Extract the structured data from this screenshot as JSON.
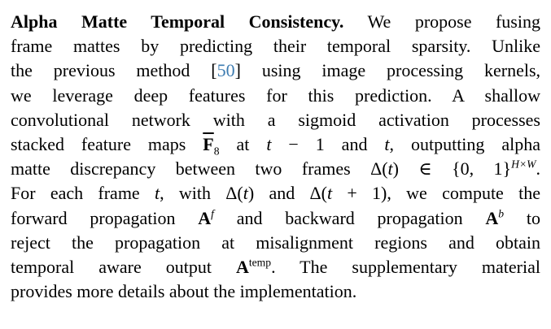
{
  "page": {
    "background": "#ffffff",
    "text_color": "#000000",
    "citation_color": "#3e7cb1"
  },
  "paragraph": {
    "run_in_heading": "Alpha Matte Temporal Consistency.",
    "citation_ref": "50",
    "lines": [
      [
        {
          "t": "Alpha Matte Temporal Consistency.",
          "b": true
        },
        {
          "t": " We propose fusing"
        }
      ],
      [
        {
          "t": "frame mattes by predicting their temporal sparsity. Unlike"
        }
      ],
      [
        {
          "t": "the previous method ["
        },
        {
          "t": "50",
          "c": true
        },
        {
          "t": "] using image processing kernels,"
        }
      ],
      [
        {
          "t": "we leverage deep features for this prediction. A shallow"
        }
      ],
      [
        {
          "t": "convolutional network with a sigmoid activation processes"
        }
      ],
      [
        {
          "t": "stacked feature maps "
        },
        {
          "t": "F",
          "b": true,
          "bar": true
        },
        {
          "t": "8",
          "sub": true
        },
        {
          "t": " at "
        },
        {
          "t": "t",
          "i": true
        },
        {
          "t": " − 1 and "
        },
        {
          "t": "t",
          "i": true
        },
        {
          "t": ", outputting alpha"
        }
      ],
      [
        {
          "t": "matte discrepancy between two frames Δ("
        },
        {
          "t": "t",
          "i": true
        },
        {
          "t": ") ∈ {0, 1}"
        },
        {
          "t": "H×W",
          "sup": true,
          "i": true
        },
        {
          "t": "."
        }
      ],
      [
        {
          "t": "For each frame "
        },
        {
          "t": "t",
          "i": true
        },
        {
          "t": ", with Δ("
        },
        {
          "t": "t",
          "i": true
        },
        {
          "t": ") and Δ("
        },
        {
          "t": "t",
          "i": true
        },
        {
          "t": " + 1), we compute the"
        }
      ],
      [
        {
          "t": "forward propagation "
        },
        {
          "t": "A",
          "b": true
        },
        {
          "t": "f",
          "sup": true,
          "i": true
        },
        {
          "t": " and backward propagation "
        },
        {
          "t": "A",
          "b": true
        },
        {
          "t": "b",
          "sup": true,
          "i": true
        },
        {
          "t": " to"
        }
      ],
      [
        {
          "t": "reject the propagation at misalignment regions and obtain"
        }
      ],
      [
        {
          "t": "temporal aware output "
        },
        {
          "t": "A",
          "b": true
        },
        {
          "t": "temp",
          "sup": true
        },
        {
          "t": ". The supplementary material"
        }
      ],
      [
        {
          "t": "provides more details about the implementation."
        }
      ]
    ]
  }
}
